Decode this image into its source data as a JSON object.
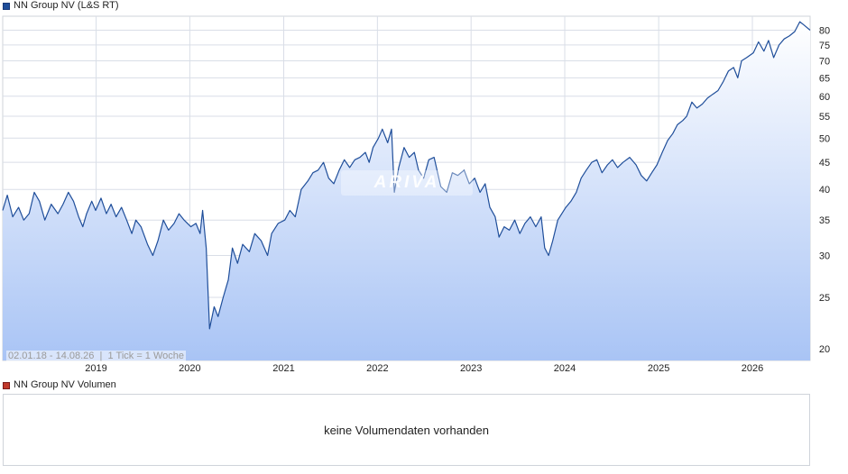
{
  "price_panel": {
    "legend_label": "NN Group NV (L&S RT)",
    "legend_color": "#1f4e9a",
    "range_note": "02.01.18 - 14.08.26",
    "tick_note": "1 Tick = 1 Woche",
    "watermark_text": "ARIVA"
  },
  "volume_panel": {
    "legend_label": "NN Group NV Volumen",
    "legend_color": "#c0392b",
    "empty_message": "keine Volumendaten vorhanden"
  },
  "colors": {
    "line": "#1f4e9a",
    "area_top": "#ffffff",
    "area_bottom": "#a9c4f5",
    "grid": "#d9dee7"
  },
  "chart_data": {
    "type": "area",
    "scale": "log",
    "series": [
      {
        "values": [
          [
            "2018-01-02",
            36.5
          ],
          [
            "2018-01-20",
            39
          ],
          [
            "2018-02-10",
            35.5
          ],
          [
            "2018-03-05",
            37
          ],
          [
            "2018-03-25",
            35
          ],
          [
            "2018-04-15",
            36
          ],
          [
            "2018-05-05",
            39.5
          ],
          [
            "2018-05-25",
            38
          ],
          [
            "2018-06-15",
            35
          ],
          [
            "2018-07-10",
            37.5
          ],
          [
            "2018-08-05",
            36
          ],
          [
            "2018-08-25",
            37.5
          ],
          [
            "2018-09-15",
            39.5
          ],
          [
            "2018-10-05",
            38
          ],
          [
            "2018-10-25",
            35.5
          ],
          [
            "2018-11-10",
            34
          ],
          [
            "2018-11-25",
            36
          ],
          [
            "2018-12-15",
            38
          ],
          [
            "2018-12-30",
            36.5
          ],
          [
            "2019-01-20",
            38.5
          ],
          [
            "2019-02-10",
            36
          ],
          [
            "2019-02-28",
            37.5
          ],
          [
            "2019-03-20",
            35.5
          ],
          [
            "2019-04-10",
            37
          ],
          [
            "2019-04-30",
            35
          ],
          [
            "2019-05-20",
            33
          ],
          [
            "2019-06-05",
            35
          ],
          [
            "2019-06-25",
            34
          ],
          [
            "2019-07-20",
            31.5
          ],
          [
            "2019-08-10",
            30
          ],
          [
            "2019-08-30",
            32
          ],
          [
            "2019-09-20",
            35
          ],
          [
            "2019-10-10",
            33.5
          ],
          [
            "2019-11-01",
            34.5
          ],
          [
            "2019-11-20",
            36
          ],
          [
            "2019-12-10",
            35
          ],
          [
            "2020-01-05",
            34
          ],
          [
            "2020-01-25",
            34.5
          ],
          [
            "2020-02-10",
            33
          ],
          [
            "2020-02-20",
            36.5
          ],
          [
            "2020-03-05",
            31
          ],
          [
            "2020-03-18",
            21.8
          ],
          [
            "2020-04-05",
            24
          ],
          [
            "2020-04-20",
            23
          ],
          [
            "2020-05-10",
            25
          ],
          [
            "2020-05-30",
            27
          ],
          [
            "2020-06-15",
            31
          ],
          [
            "2020-07-05",
            29
          ],
          [
            "2020-07-25",
            31.5
          ],
          [
            "2020-08-20",
            30.5
          ],
          [
            "2020-09-10",
            33
          ],
          [
            "2020-10-05",
            32
          ],
          [
            "2020-10-30",
            30
          ],
          [
            "2020-11-15",
            33
          ],
          [
            "2020-12-10",
            34.5
          ],
          [
            "2021-01-05",
            35
          ],
          [
            "2021-01-25",
            36.5
          ],
          [
            "2021-02-15",
            35.5
          ],
          [
            "2021-03-10",
            40
          ],
          [
            "2021-04-05",
            41.5
          ],
          [
            "2021-04-25",
            43
          ],
          [
            "2021-05-15",
            43.5
          ],
          [
            "2021-06-05",
            45
          ],
          [
            "2021-06-25",
            42
          ],
          [
            "2021-07-15",
            41
          ],
          [
            "2021-08-05",
            43.5
          ],
          [
            "2021-08-25",
            45.5
          ],
          [
            "2021-09-15",
            44
          ],
          [
            "2021-10-05",
            45.5
          ],
          [
            "2021-10-25",
            46
          ],
          [
            "2021-11-15",
            47
          ],
          [
            "2021-11-30",
            45
          ],
          [
            "2021-12-15",
            48
          ],
          [
            "2022-01-05",
            50
          ],
          [
            "2022-01-20",
            52
          ],
          [
            "2022-02-10",
            49
          ],
          [
            "2022-02-25",
            52
          ],
          [
            "2022-03-08",
            39.5
          ],
          [
            "2022-03-25",
            44
          ],
          [
            "2022-04-15",
            48
          ],
          [
            "2022-05-05",
            46
          ],
          [
            "2022-05-25",
            47
          ],
          [
            "2022-06-10",
            43.5
          ],
          [
            "2022-06-30",
            42
          ],
          [
            "2022-07-20",
            45.5
          ],
          [
            "2022-08-10",
            46
          ],
          [
            "2022-09-05",
            40.5
          ],
          [
            "2022-09-28",
            39.5
          ],
          [
            "2022-10-20",
            43
          ],
          [
            "2022-11-10",
            42.5
          ],
          [
            "2022-12-05",
            43.5
          ],
          [
            "2022-12-25",
            41
          ],
          [
            "2023-01-15",
            42
          ],
          [
            "2023-02-05",
            39.5
          ],
          [
            "2023-02-25",
            41
          ],
          [
            "2023-03-15",
            37
          ],
          [
            "2023-04-05",
            35.5
          ],
          [
            "2023-04-20",
            32.5
          ],
          [
            "2023-05-10",
            34
          ],
          [
            "2023-05-30",
            33.5
          ],
          [
            "2023-06-20",
            35
          ],
          [
            "2023-07-10",
            33
          ],
          [
            "2023-07-30",
            34.5
          ],
          [
            "2023-08-20",
            35.5
          ],
          [
            "2023-09-10",
            34
          ],
          [
            "2023-10-01",
            35.5
          ],
          [
            "2023-10-15",
            31
          ],
          [
            "2023-10-30",
            30
          ],
          [
            "2023-11-15",
            32
          ],
          [
            "2023-12-05",
            35
          ],
          [
            "2024-01-05",
            37
          ],
          [
            "2024-01-25",
            38
          ],
          [
            "2024-02-15",
            39.5
          ],
          [
            "2024-03-05",
            42
          ],
          [
            "2024-03-25",
            43.5
          ],
          [
            "2024-04-15",
            45
          ],
          [
            "2024-05-05",
            45.5
          ],
          [
            "2024-05-25",
            43
          ],
          [
            "2024-06-15",
            44.5
          ],
          [
            "2024-07-05",
            45.5
          ],
          [
            "2024-07-25",
            44
          ],
          [
            "2024-08-15",
            45
          ],
          [
            "2024-09-10",
            46
          ],
          [
            "2024-10-05",
            44.5
          ],
          [
            "2024-10-25",
            42.5
          ],
          [
            "2024-11-15",
            41.5
          ],
          [
            "2024-12-05",
            43
          ],
          [
            "2024-12-25",
            44.5
          ],
          [
            "2025-01-15",
            47
          ],
          [
            "2025-02-05",
            49.5
          ],
          [
            "2025-02-25",
            51
          ],
          [
            "2025-03-15",
            53
          ],
          [
            "2025-04-05",
            54
          ],
          [
            "2025-04-20",
            55
          ],
          [
            "2025-05-10",
            58.5
          ],
          [
            "2025-05-30",
            57
          ],
          [
            "2025-06-20",
            58
          ],
          [
            "2025-07-10",
            59.5
          ],
          [
            "2025-07-30",
            60.5
          ],
          [
            "2025-08-20",
            61.5
          ],
          [
            "2025-09-10",
            64
          ],
          [
            "2025-09-30",
            67
          ],
          [
            "2025-10-20",
            68
          ],
          [
            "2025-11-05",
            65
          ],
          [
            "2025-11-20",
            70
          ],
          [
            "2025-12-10",
            71
          ],
          [
            "2026-01-05",
            72.5
          ],
          [
            "2026-01-25",
            76
          ],
          [
            "2026-02-15",
            73
          ],
          [
            "2026-03-05",
            76.5
          ],
          [
            "2026-03-25",
            71
          ],
          [
            "2026-04-15",
            75
          ],
          [
            "2026-05-05",
            77
          ],
          [
            "2026-05-25",
            78
          ],
          [
            "2026-06-15",
            79.5
          ],
          [
            "2026-07-05",
            83
          ],
          [
            "2026-07-25",
            81.5
          ],
          [
            "2026-08-14",
            80
          ]
        ]
      }
    ],
    "x_ticks": [
      "2019",
      "2020",
      "2021",
      "2022",
      "2023",
      "2024",
      "2025",
      "2026"
    ],
    "y_ticks": [
      20,
      25,
      30,
      35,
      40,
      45,
      50,
      55,
      60,
      65,
      70,
      75,
      80
    ],
    "xlim": [
      "2018-01-02",
      "2026-08-14"
    ],
    "ylim": [
      19,
      85
    ],
    "grid": true
  }
}
